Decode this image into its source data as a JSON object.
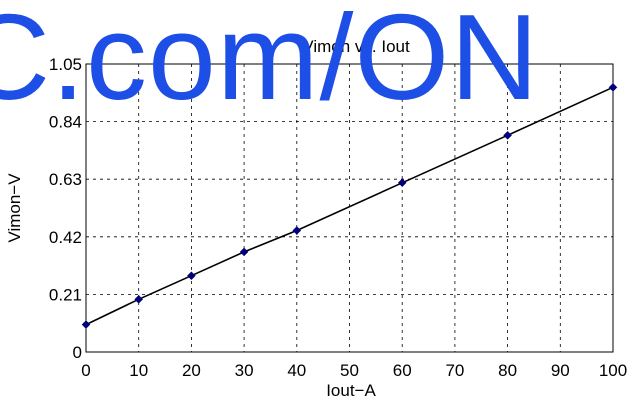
{
  "chart_data": {
    "type": "line",
    "title": "Vimon vs. Iout",
    "xlabel": "Iout−A",
    "ylabel": "Vimon−V",
    "xlim": [
      0,
      100
    ],
    "ylim": [
      0,
      1.05
    ],
    "x_ticks": [
      "0",
      "10",
      "20",
      "30",
      "40",
      "50",
      "60",
      "70",
      "80",
      "90",
      "100"
    ],
    "y_ticks": [
      "0",
      "0.21",
      "0.42",
      "0.63",
      "0.84",
      "1.05"
    ],
    "grid": true,
    "grid_style": "dashed",
    "series": [
      {
        "color": "#000000",
        "marker_color": "#00007f",
        "marker": "diamond",
        "x": [
          0,
          10,
          20,
          30,
          40,
          60,
          80,
          100
        ],
        "y": [
          0.1,
          0.192,
          0.278,
          0.365,
          0.443,
          0.617,
          0.79,
          0.965
        ]
      }
    ]
  },
  "watermark": {
    "text": "C.com/ON",
    "color": "#1d4ee6"
  }
}
